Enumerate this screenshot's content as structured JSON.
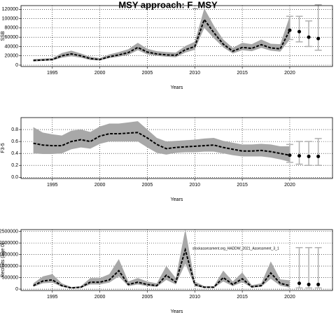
{
  "title": "MSY approach: F_MSY",
  "chart_data": [
    {
      "type": "line",
      "xlabel": "Years",
      "ylabel": "SSB",
      "color": "#000000",
      "band_color": "#a8a8a8",
      "forecast_color": "#b0b0b0",
      "grid": true,
      "xlim": [
        1991.7,
        2024.5
      ],
      "xticks": [
        1995,
        2000,
        2005,
        2010,
        2015,
        2020
      ],
      "ylim": [
        -3000,
        128000
      ],
      "yticks": [
        0,
        20000,
        40000,
        60000,
        80000,
        100000,
        120000
      ],
      "x": [
        1993,
        1994,
        1995,
        1996,
        1997,
        1998,
        1999,
        2000,
        2001,
        2002,
        2003,
        2004,
        2005,
        2006,
        2007,
        2008,
        2009,
        2010,
        2011,
        2012,
        2013,
        2014,
        2015,
        2016,
        2017,
        2018,
        2019,
        2020
      ],
      "values": [
        10000,
        11000,
        12000,
        20000,
        24000,
        20000,
        14000,
        12000,
        18000,
        22000,
        27000,
        38000,
        28000,
        24000,
        22000,
        21000,
        33000,
        40000,
        98000,
        70000,
        45000,
        30000,
        38000,
        36000,
        44000,
        37000,
        35000,
        75000
      ],
      "low": [
        8000,
        9000,
        10000,
        16000,
        19000,
        16000,
        11000,
        10000,
        15000,
        18000,
        22000,
        32000,
        23000,
        20000,
        18000,
        17000,
        27000,
        33000,
        80000,
        58000,
        38000,
        25000,
        32000,
        30000,
        37000,
        31000,
        29000,
        55000
      ],
      "high": [
        13000,
        14000,
        15000,
        26000,
        31000,
        25000,
        18000,
        15000,
        23000,
        28000,
        34000,
        48000,
        35000,
        30000,
        28000,
        27000,
        41000,
        50000,
        122000,
        85000,
        55000,
        37000,
        48000,
        45000,
        55000,
        46000,
        45000,
        105000
      ],
      "forecast": {
        "x": [
          2020,
          2021,
          2022,
          2023
        ],
        "values": [
          75000,
          72000,
          60000,
          57000
        ],
        "low": [
          55000,
          50000,
          40000,
          32000
        ],
        "high": [
          105000,
          105000,
          95000,
          130000
        ]
      }
    },
    {
      "type": "line",
      "xlabel": "Years",
      "ylabel": "F3-5",
      "color": "#000000",
      "band_color": "#a8a8a8",
      "forecast_color": "#b0b0b0",
      "grid": true,
      "xlim": [
        1991.7,
        2024.5
      ],
      "xticks": [
        1995,
        2000,
        2005,
        2010,
        2015,
        2020
      ],
      "ylim": [
        -0.02,
        1.0
      ],
      "yticks": [
        {
          "value": 0,
          "label": "0.0"
        },
        0.2,
        0.4,
        0.6,
        0.8
      ],
      "x": [
        1993,
        1994,
        1995,
        1996,
        1997,
        1998,
        1999,
        2000,
        2001,
        2002,
        2003,
        2004,
        2005,
        2006,
        2007,
        2008,
        2009,
        2010,
        2011,
        2012,
        2013,
        2014,
        2015,
        2016,
        2017,
        2018,
        2019,
        2020
      ],
      "values": [
        0.57,
        0.54,
        0.53,
        0.53,
        0.6,
        0.63,
        0.6,
        0.69,
        0.73,
        0.73,
        0.74,
        0.75,
        0.66,
        0.55,
        0.48,
        0.5,
        0.51,
        0.52,
        0.53,
        0.54,
        0.5,
        0.47,
        0.44,
        0.44,
        0.45,
        0.43,
        0.4,
        0.37
      ],
      "low": [
        0.4,
        0.39,
        0.39,
        0.4,
        0.47,
        0.5,
        0.48,
        0.56,
        0.6,
        0.6,
        0.6,
        0.6,
        0.5,
        0.41,
        0.38,
        0.41,
        0.42,
        0.42,
        0.43,
        0.43,
        0.4,
        0.37,
        0.35,
        0.35,
        0.35,
        0.33,
        0.3,
        0.26
      ],
      "high": [
        0.84,
        0.75,
        0.72,
        0.7,
        0.78,
        0.8,
        0.76,
        0.85,
        0.9,
        0.9,
        0.92,
        0.94,
        0.8,
        0.66,
        0.6,
        0.61,
        0.62,
        0.63,
        0.65,
        0.66,
        0.61,
        0.58,
        0.55,
        0.55,
        0.56,
        0.55,
        0.52,
        0.52
      ],
      "forecast": {
        "x": [
          2020,
          2021,
          2022,
          2023
        ],
        "values": [
          0.37,
          0.36,
          0.35,
          0.35
        ],
        "low": [
          0.25,
          0.22,
          0.2,
          0.2
        ],
        "high": [
          0.55,
          0.6,
          0.6,
          0.65
        ]
      }
    },
    {
      "type": "line",
      "xlabel": "Years",
      "ylabel": "Recruits (age 0)",
      "color": "#000000",
      "band_color": "#a8a8a8",
      "forecast_color": "#b0b0b0",
      "grid": true,
      "annotation": "stockassessment.org_HADDW_2021_Assessment_3_1",
      "xlim": [
        1991.7,
        2024.5
      ],
      "xticks": [
        1995,
        2000,
        2005,
        2010,
        2015,
        2020
      ],
      "ylim": [
        -60000,
        2580000
      ],
      "yticks": [
        0,
        500000,
        1000000,
        1500000,
        2000000,
        2500000
      ],
      "x": [
        1993,
        1994,
        1995,
        1996,
        1997,
        1998,
        1999,
        2000,
        2001,
        2002,
        2003,
        2004,
        2005,
        2006,
        2007,
        2008,
        2009,
        2010,
        2011,
        2012,
        2013,
        2014,
        2015,
        2016,
        2017,
        2018,
        2019,
        2020
      ],
      "values": [
        150000,
        350000,
        400000,
        150000,
        50000,
        80000,
        300000,
        300000,
        400000,
        800000,
        200000,
        300000,
        200000,
        150000,
        600000,
        300000,
        1700000,
        200000,
        80000,
        80000,
        500000,
        200000,
        450000,
        100000,
        150000,
        700000,
        250000,
        150000
      ],
      "low": [
        100000,
        250000,
        280000,
        100000,
        30000,
        50000,
        200000,
        200000,
        280000,
        550000,
        130000,
        200000,
        130000,
        100000,
        400000,
        200000,
        1100000,
        130000,
        50000,
        50000,
        330000,
        130000,
        300000,
        60000,
        100000,
        450000,
        150000,
        60000
      ],
      "high": [
        250000,
        550000,
        650000,
        250000,
        90000,
        130000,
        480000,
        480000,
        650000,
        1300000,
        330000,
        480000,
        330000,
        250000,
        1000000,
        480000,
        2600000,
        330000,
        130000,
        130000,
        800000,
        330000,
        720000,
        170000,
        250000,
        1200000,
        420000,
        380000
      ],
      "forecast": {
        "x": [
          2021,
          2022,
          2023
        ],
        "values": [
          250000,
          200000,
          200000
        ],
        "low": [
          50000,
          50000,
          50000
        ],
        "high": [
          1800000,
          1800000,
          1800000
        ]
      }
    }
  ]
}
